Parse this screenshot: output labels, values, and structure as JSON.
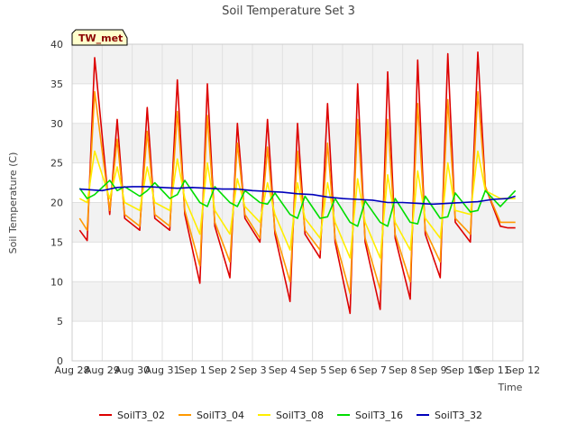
{
  "chart_data": {
    "type": "line",
    "title": "Soil Temperature Set 3",
    "xlabel": "Time",
    "ylabel": "Soil Temperature (C)",
    "badge": "TW_met",
    "ylim": [
      0,
      40
    ],
    "yticks": [
      0,
      5,
      10,
      15,
      20,
      25,
      30,
      35,
      40
    ],
    "xlim_days": [
      0,
      15
    ],
    "xtick_labels": [
      "Aug 28",
      "Aug 29",
      "Aug 30",
      "Aug 31",
      "Sep 1",
      "Sep 2",
      "Sep 3",
      "Sep 4",
      "Sep 5",
      "Sep 6",
      "Sep 7",
      "Sep 8",
      "Sep 9",
      "Sep 10",
      "Sep 11",
      "Sep 12"
    ],
    "grid": true,
    "legend_position": "bottom",
    "colors": {
      "SoilT3_02": "#dd0000",
      "SoilT3_04": "#ff9900",
      "SoilT3_08": "#ffee00",
      "SoilT3_16": "#00dd00",
      "SoilT3_32": "#0000bb",
      "band": "#f2f2f2",
      "badge_fill": "#ffffcc"
    },
    "series": [
      {
        "name": "SoilT3_02",
        "x": [
          "Aug 28 06:00",
          "Aug 28 12:00",
          "Aug 28 18:00",
          "Aug 29 06:00",
          "Aug 29 12:00",
          "Aug 29 18:00",
          "Aug 30 06:00",
          "Aug 30 12:00",
          "Aug 30 18:00",
          "Aug 31 06:00",
          "Aug 31 12:00",
          "Aug 31 18:00",
          "Sep 1 06:00",
          "Sep 1 12:00",
          "Sep 1 18:00",
          "Sep 2 06:00",
          "Sep 2 12:00",
          "Sep 2 18:00",
          "Sep 3 06:00",
          "Sep 3 12:00",
          "Sep 3 18:00",
          "Sep 4 06:00",
          "Sep 4 12:00",
          "Sep 4 18:00",
          "Sep 5 06:00",
          "Sep 5 12:00",
          "Sep 5 18:00",
          "Sep 6 06:00",
          "Sep 6 12:00",
          "Sep 6 18:00",
          "Sep 7 06:00",
          "Sep 7 12:00",
          "Sep 7 18:00",
          "Sep 8 06:00",
          "Sep 8 12:00",
          "Sep 8 18:00",
          "Sep 9 06:00",
          "Sep 9 12:00",
          "Sep 9 18:00",
          "Sep 10 06:00",
          "Sep 10 12:00",
          "Sep 10 18:00",
          "Sep 11 06:00",
          "Sep 11 12:00",
          "Sep 11 18:00"
        ],
        "values": [
          16.5,
          15.2,
          38.3,
          18.5,
          30.5,
          18.0,
          16.5,
          32.0,
          18.0,
          16.5,
          35.5,
          18.5,
          9.8,
          35.0,
          17.0,
          10.5,
          30.0,
          18.0,
          15.0,
          30.5,
          16.0,
          7.5,
          30.0,
          16.0,
          13.0,
          32.5,
          15.0,
          6.0,
          35.0,
          15.0,
          6.5,
          36.5,
          15.5,
          7.8,
          38.0,
          16.0,
          10.5,
          38.8,
          17.5,
          15.0,
          39.0,
          22.0,
          17.0,
          16.8,
          16.8
        ]
      },
      {
        "name": "SoilT3_04",
        "x": [
          "Aug 28 06:00",
          "Aug 28 12:00",
          "Aug 28 18:00",
          "Aug 29 06:00",
          "Aug 29 12:00",
          "Aug 29 18:00",
          "Aug 30 06:00",
          "Aug 30 12:00",
          "Aug 30 18:00",
          "Aug 31 06:00",
          "Aug 31 12:00",
          "Aug 31 18:00",
          "Sep 1 06:00",
          "Sep 1 12:00",
          "Sep 1 18:00",
          "Sep 2 06:00",
          "Sep 2 12:00",
          "Sep 2 18:00",
          "Sep 3 06:00",
          "Sep 3 12:00",
          "Sep 3 18:00",
          "Sep 4 06:00",
          "Sep 4 12:00",
          "Sep 4 18:00",
          "Sep 5 06:00",
          "Sep 5 12:00",
          "Sep 5 18:00",
          "Sep 6 06:00",
          "Sep 6 12:00",
          "Sep 6 18:00",
          "Sep 7 06:00",
          "Sep 7 12:00",
          "Sep 7 18:00",
          "Sep 8 06:00",
          "Sep 8 12:00",
          "Sep 8 18:00",
          "Sep 9 06:00",
          "Sep 9 12:00",
          "Sep 9 18:00",
          "Sep 10 06:00",
          "Sep 10 12:00",
          "Sep 10 18:00",
          "Sep 11 06:00",
          "Sep 11 12:00",
          "Sep 11 18:00"
        ],
        "values": [
          18.0,
          16.5,
          34.0,
          19.0,
          28.0,
          18.5,
          17.0,
          29.0,
          18.5,
          17.0,
          31.5,
          19.0,
          12.0,
          31.0,
          17.5,
          12.5,
          27.5,
          18.5,
          15.5,
          27.0,
          16.5,
          10.0,
          26.5,
          16.5,
          14.0,
          27.5,
          15.5,
          8.5,
          30.5,
          15.5,
          9.0,
          30.5,
          16.0,
          10.0,
          32.5,
          16.5,
          12.5,
          33.0,
          18.0,
          16.0,
          34.0,
          22.0,
          17.5,
          17.5,
          17.5
        ]
      },
      {
        "name": "SoilT3_08",
        "x": [
          "Aug 28 06:00",
          "Aug 28 12:00",
          "Aug 28 18:00",
          "Aug 29 06:00",
          "Aug 29 12:00",
          "Aug 29 18:00",
          "Aug 30 06:00",
          "Aug 30 12:00",
          "Aug 30 18:00",
          "Aug 31 06:00",
          "Aug 31 12:00",
          "Aug 31 18:00",
          "Sep 1 06:00",
          "Sep 1 12:00",
          "Sep 1 18:00",
          "Sep 2 06:00",
          "Sep 2 12:00",
          "Sep 2 18:00",
          "Sep 3 06:00",
          "Sep 3 12:00",
          "Sep 3 18:00",
          "Sep 4 06:00",
          "Sep 4 12:00",
          "Sep 4 18:00",
          "Sep 5 06:00",
          "Sep 5 12:00",
          "Sep 5 18:00",
          "Sep 6 06:00",
          "Sep 6 12:00",
          "Sep 6 18:00",
          "Sep 7 06:00",
          "Sep 7 12:00",
          "Sep 7 18:00",
          "Sep 8 06:00",
          "Sep 8 12:00",
          "Sep 8 18:00",
          "Sep 9 06:00",
          "Sep 9 12:00",
          "Sep 9 18:00",
          "Sep 10 06:00",
          "Sep 10 12:00",
          "Sep 10 18:00",
          "Sep 11 06:00",
          "Sep 11 12:00",
          "Sep 11 18:00"
        ],
        "values": [
          20.5,
          20.0,
          26.5,
          20.5,
          24.5,
          20.0,
          19.0,
          24.5,
          20.0,
          19.0,
          25.5,
          20.5,
          16.0,
          25.0,
          19.0,
          16.0,
          23.0,
          19.5,
          17.5,
          22.5,
          18.5,
          14.0,
          22.5,
          18.0,
          15.5,
          22.5,
          17.5,
          13.0,
          23.0,
          17.5,
          13.0,
          23.5,
          17.5,
          14.0,
          24.0,
          18.0,
          15.5,
          25.0,
          19.0,
          18.5,
          26.5,
          21.5,
          20.5,
          20.5,
          20.5
        ]
      },
      {
        "name": "SoilT3_16",
        "x": [
          "Aug 28 06:00",
          "Aug 28 12:00",
          "Aug 28 18:00",
          "Aug 29 06:00",
          "Aug 29 12:00",
          "Aug 29 18:00",
          "Aug 30 06:00",
          "Aug 30 12:00",
          "Aug 30 18:00",
          "Aug 31 06:00",
          "Aug 31 12:00",
          "Aug 31 18:00",
          "Sep 1 06:00",
          "Sep 1 12:00",
          "Sep 1 18:00",
          "Sep 2 06:00",
          "Sep 2 12:00",
          "Sep 2 18:00",
          "Sep 3 06:00",
          "Sep 3 12:00",
          "Sep 3 18:00",
          "Sep 4 06:00",
          "Sep 4 12:00",
          "Sep 4 18:00",
          "Sep 5 06:00",
          "Sep 5 12:00",
          "Sep 5 18:00",
          "Sep 6 06:00",
          "Sep 6 12:00",
          "Sep 6 18:00",
          "Sep 7 06:00",
          "Sep 7 12:00",
          "Sep 7 18:00",
          "Sep 8 06:00",
          "Sep 8 12:00",
          "Sep 8 18:00",
          "Sep 9 06:00",
          "Sep 9 12:00",
          "Sep 9 18:00",
          "Sep 10 06:00",
          "Sep 10 12:00",
          "Sep 10 18:00",
          "Sep 11 06:00",
          "Sep 11 12:00",
          "Sep 11 18:00"
        ],
        "values": [
          21.8,
          20.5,
          21.0,
          22.8,
          21.5,
          22.0,
          20.8,
          21.5,
          22.5,
          20.5,
          21.0,
          22.8,
          20.0,
          19.5,
          22.0,
          20.0,
          19.5,
          21.5,
          20.0,
          19.8,
          21.2,
          18.5,
          18.0,
          20.8,
          18.0,
          18.2,
          20.5,
          17.5,
          17.0,
          20.2,
          17.5,
          17.0,
          20.5,
          17.5,
          17.3,
          20.8,
          18.0,
          18.2,
          21.2,
          18.8,
          19.0,
          21.5,
          19.5,
          20.5,
          21.5
        ]
      },
      {
        "name": "SoilT3_32",
        "x": [
          "Aug 28 06:00",
          "Aug 29 00:00",
          "Aug 29 12:00",
          "Aug 30 00:00",
          "Aug 30 12:00",
          "Aug 31 00:00",
          "Aug 31 12:00",
          "Sep 1 00:00",
          "Sep 1 12:00",
          "Sep 2 00:00",
          "Sep 2 12:00",
          "Sep 3 00:00",
          "Sep 3 12:00",
          "Sep 4 00:00",
          "Sep 4 12:00",
          "Sep 5 00:00",
          "Sep 5 12:00",
          "Sep 6 00:00",
          "Sep 6 12:00",
          "Sep 7 00:00",
          "Sep 7 12:00",
          "Sep 8 00:00",
          "Sep 8 12:00",
          "Sep 9 00:00",
          "Sep 9 12:00",
          "Sep 10 00:00",
          "Sep 10 12:00",
          "Sep 11 00:00",
          "Sep 11 12:00",
          "Sep 11 18:00"
        ],
        "values": [
          21.7,
          21.5,
          21.9,
          22.0,
          22.0,
          21.9,
          21.8,
          21.9,
          21.8,
          21.7,
          21.7,
          21.5,
          21.4,
          21.3,
          21.1,
          21.0,
          20.7,
          20.5,
          20.4,
          20.3,
          20.0,
          20.0,
          19.9,
          19.8,
          19.9,
          20.0,
          20.1,
          20.4,
          20.5,
          20.8
        ]
      }
    ]
  }
}
